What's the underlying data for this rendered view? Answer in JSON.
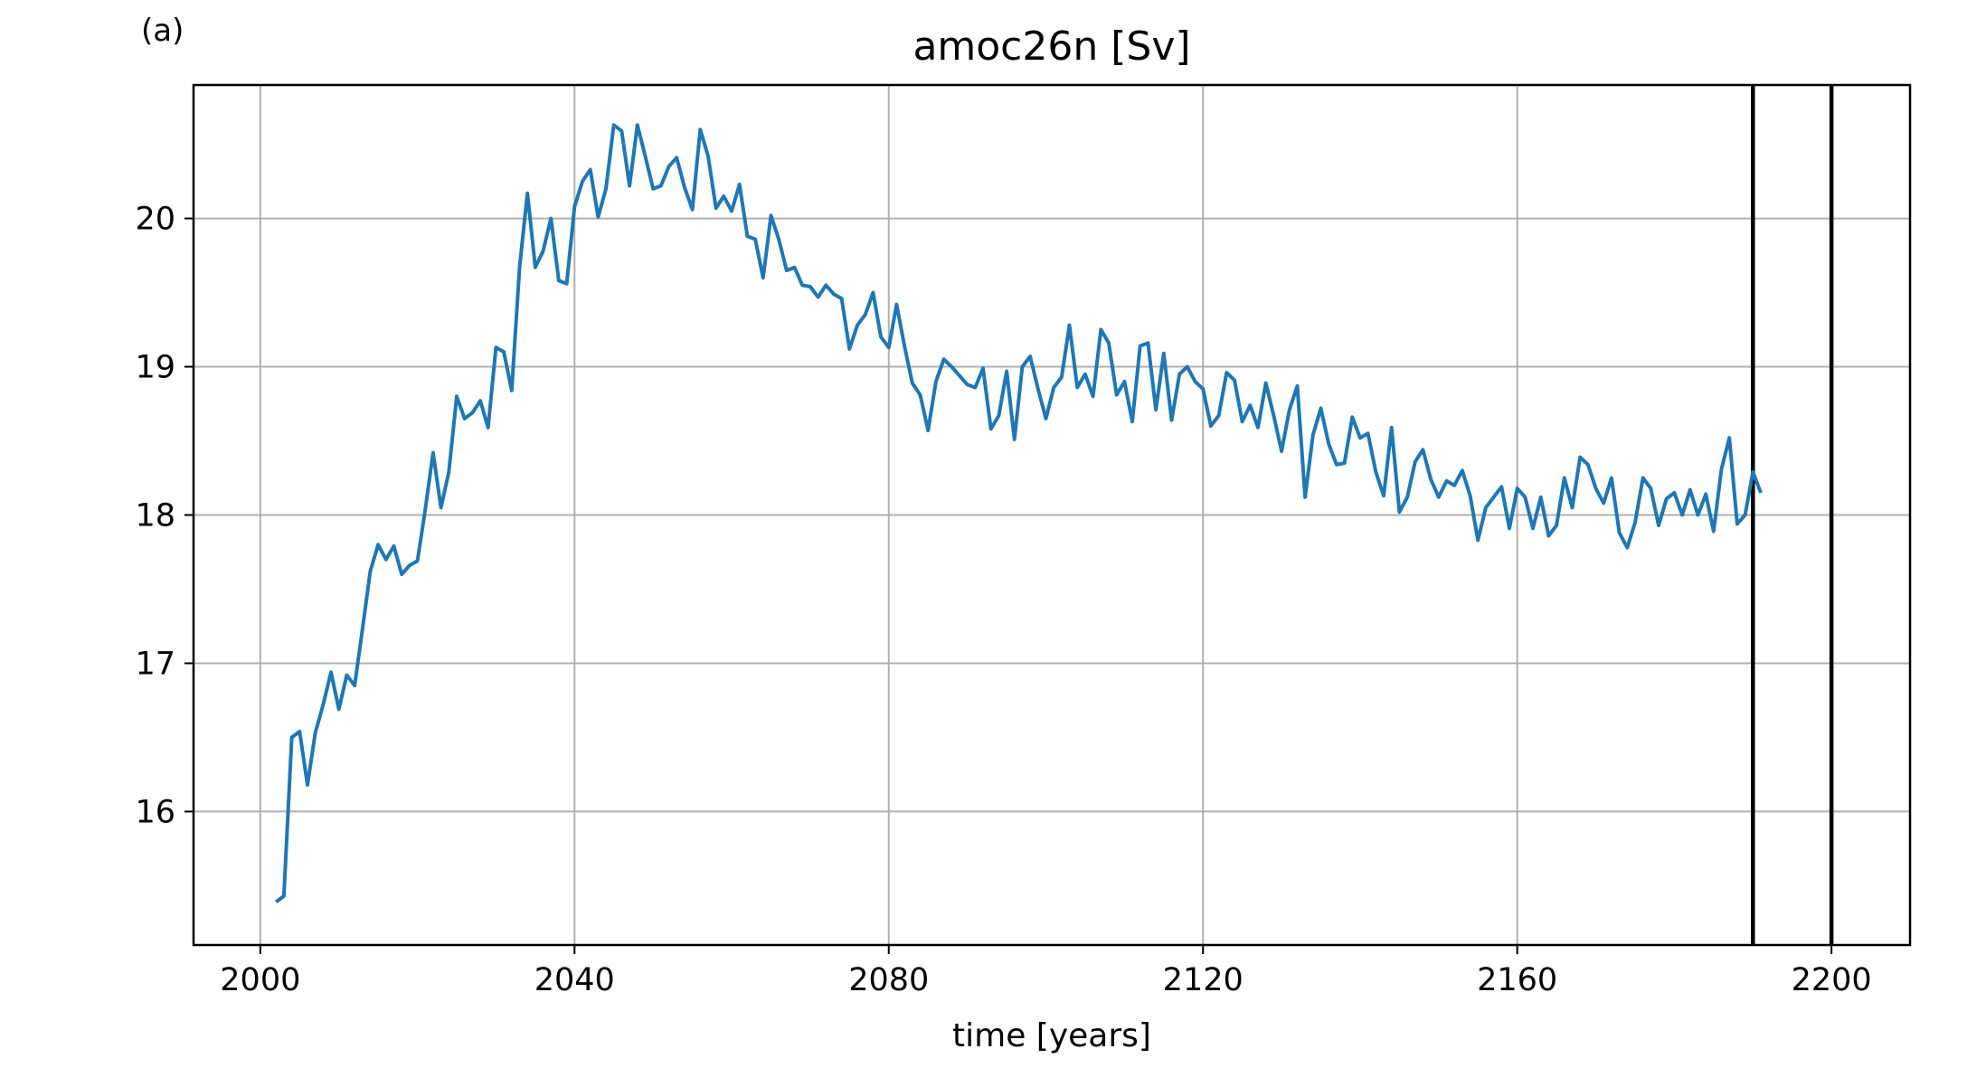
{
  "panel_label": "(a)",
  "chart_data": {
    "type": "line",
    "title": "amoc26n [Sv]",
    "xlabel": "time [years]",
    "ylabel": "",
    "xlim": [
      1991.5,
      2210
    ],
    "ylim": [
      15.1,
      20.9
    ],
    "xticks": [
      2000,
      2040,
      2080,
      2120,
      2160,
      2200
    ],
    "yticks": [
      16,
      17,
      18,
      19,
      20
    ],
    "grid": true,
    "vlines": [
      2190,
      2200
    ],
    "colors": {
      "series": "#1f77b4",
      "vlines": "#000000",
      "grid": "#b0b0b0"
    },
    "series": [
      {
        "x": [
          2002,
          2003,
          2004,
          2005,
          2006,
          2007,
          2008,
          2009,
          2010,
          2011,
          2012,
          2013,
          2014,
          2015,
          2016,
          2017,
          2018,
          2019,
          2020,
          2021,
          2022,
          2023,
          2024,
          2025,
          2026,
          2027,
          2028,
          2029,
          2030,
          2031,
          2032,
          2033,
          2034,
          2035,
          2036,
          2037,
          2038,
          2039,
          2040,
          2041,
          2042,
          2043,
          2044,
          2045,
          2046,
          2047,
          2048,
          2049,
          2050,
          2051,
          2052,
          2053,
          2054,
          2055,
          2056,
          2057,
          2058,
          2059,
          2060,
          2061,
          2062,
          2063,
          2064,
          2065,
          2066,
          2067,
          2068,
          2069,
          2070,
          2071,
          2072,
          2073,
          2074,
          2075,
          2076,
          2077,
          2078,
          2079,
          2080,
          2081,
          2082,
          2083,
          2084,
          2085,
          2086,
          2087,
          2088,
          2089,
          2090,
          2091,
          2092,
          2093,
          2094,
          2095,
          2096,
          2097,
          2098,
          2099,
          2100,
          2101,
          2102,
          2103,
          2104,
          2105,
          2106,
          2107,
          2108,
          2109,
          2110,
          2111,
          2112,
          2113,
          2114,
          2115,
          2116,
          2117,
          2118,
          2119,
          2120,
          2121,
          2122,
          2123,
          2124,
          2125,
          2126,
          2127,
          2128,
          2129,
          2130,
          2131,
          2132,
          2133,
          2134,
          2135,
          2136,
          2137,
          2138,
          2139,
          2140,
          2141,
          2142,
          2143,
          2144,
          2145,
          2146,
          2147,
          2148,
          2149,
          2150,
          2151,
          2152,
          2153,
          2154,
          2155,
          2156,
          2157,
          2158,
          2159,
          2160,
          2161,
          2162,
          2163,
          2164,
          2165,
          2166,
          2167,
          2168,
          2169,
          2170,
          2171,
          2172,
          2173,
          2174,
          2175,
          2176,
          2177,
          2178,
          2179,
          2180,
          2181,
          2182,
          2183,
          2184,
          2185,
          2186,
          2187,
          2188,
          2189,
          2190,
          2191
        ],
        "values": [
          15.39,
          15.43,
          16.5,
          16.54,
          16.18,
          16.53,
          16.72,
          16.94,
          16.69,
          16.92,
          16.85,
          17.23,
          17.62,
          17.8,
          17.7,
          17.79,
          17.6,
          17.66,
          17.69,
          18.04,
          18.42,
          18.05,
          18.29,
          18.8,
          18.65,
          18.69,
          18.77,
          18.59,
          19.13,
          19.1,
          18.84,
          19.67,
          20.17,
          19.67,
          19.78,
          20.0,
          19.58,
          19.56,
          20.08,
          20.25,
          20.33,
          20.01,
          20.2,
          20.63,
          20.59,
          20.22,
          20.63,
          20.42,
          20.2,
          20.22,
          20.35,
          20.41,
          20.21,
          20.06,
          20.6,
          20.42,
          20.07,
          20.15,
          20.05,
          20.23,
          19.88,
          19.86,
          19.6,
          20.02,
          19.86,
          19.65,
          19.67,
          19.55,
          19.54,
          19.47,
          19.55,
          19.49,
          19.46,
          19.12,
          19.28,
          19.35,
          19.5,
          19.2,
          19.13,
          19.42,
          19.14,
          18.89,
          18.81,
          18.57,
          18.9,
          19.05,
          19.0,
          18.94,
          18.88,
          18.86,
          18.99,
          18.58,
          18.67,
          18.97,
          18.51,
          19.0,
          19.07,
          18.85,
          18.65,
          18.86,
          18.93,
          19.28,
          18.86,
          18.95,
          18.8,
          19.25,
          19.16,
          18.81,
          18.9,
          18.63,
          19.14,
          19.16,
          18.71,
          19.09,
          18.64,
          18.95,
          19.0,
          18.9,
          18.85,
          18.6,
          18.67,
          18.96,
          18.91,
          18.63,
          18.74,
          18.59,
          18.89,
          18.67,
          18.43,
          18.71,
          18.87,
          18.12,
          18.54,
          18.72,
          18.48,
          18.34,
          18.35,
          18.66,
          18.52,
          18.55,
          18.29,
          18.13,
          18.59,
          18.02,
          18.12,
          18.36,
          18.44,
          18.24,
          18.12,
          18.23,
          18.2,
          18.3,
          18.13,
          17.83,
          18.05,
          18.12,
          18.19,
          17.91,
          18.18,
          18.12,
          17.91,
          18.12,
          17.86,
          17.93,
          18.25,
          18.05,
          18.39,
          18.34,
          18.18,
          18.08,
          18.25,
          17.88,
          17.78,
          17.95,
          18.25,
          18.18,
          17.93,
          18.11,
          18.15,
          18.0,
          18.17,
          18.0,
          18.14,
          17.89,
          18.31,
          18.52,
          17.94,
          18.0,
          18.29,
          18.15
        ]
      }
    ]
  }
}
